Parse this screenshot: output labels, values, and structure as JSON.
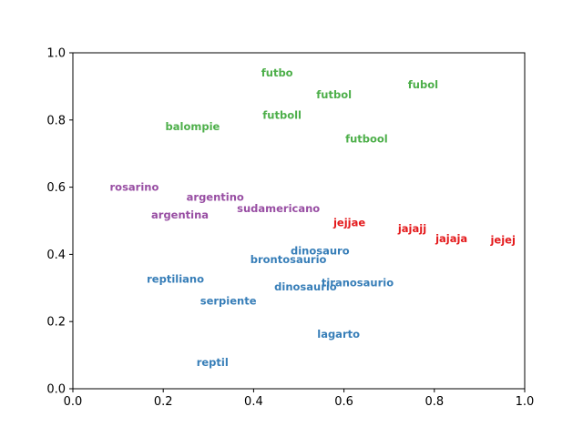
{
  "chart_data": {
    "type": "scatter",
    "title": "",
    "xlabel": "",
    "ylabel": "",
    "xlim": [
      0,
      1
    ],
    "ylim": [
      0,
      1
    ],
    "grid": false,
    "x_ticks": [
      "0.0",
      "0.2",
      "0.4",
      "0.6",
      "0.8",
      "1.0"
    ],
    "y_ticks": [
      "0.0",
      "0.2",
      "0.4",
      "0.6",
      "0.8",
      "1.0"
    ],
    "series": [
      {
        "color": "#4daf4a",
        "points": [
          {
            "label": "futbo",
            "x": 0.452,
            "y": 0.94
          },
          {
            "label": "fubol",
            "x": 0.775,
            "y": 0.905
          },
          {
            "label": "futbol",
            "x": 0.578,
            "y": 0.876
          },
          {
            "label": "futboll",
            "x": 0.463,
            "y": 0.814
          },
          {
            "label": "balompie",
            "x": 0.265,
            "y": 0.78
          },
          {
            "label": "futbool",
            "x": 0.65,
            "y": 0.744
          }
        ]
      },
      {
        "color": "#984ea3",
        "points": [
          {
            "label": "rosarino",
            "x": 0.136,
            "y": 0.6
          },
          {
            "label": "argentino",
            "x": 0.315,
            "y": 0.571
          },
          {
            "label": "sudamericano",
            "x": 0.455,
            "y": 0.536
          },
          {
            "label": "argentina",
            "x": 0.237,
            "y": 0.518
          }
        ]
      },
      {
        "color": "#e41a1c",
        "points": [
          {
            "label": "jejjae",
            "x": 0.612,
            "y": 0.495
          },
          {
            "label": "jajajj",
            "x": 0.751,
            "y": 0.477
          },
          {
            "label": "jajaja",
            "x": 0.838,
            "y": 0.447
          },
          {
            "label": "jejej",
            "x": 0.952,
            "y": 0.443
          }
        ]
      },
      {
        "color": "#377eb8",
        "points": [
          {
            "label": "dinosauro",
            "x": 0.547,
            "y": 0.41
          },
          {
            "label": "brontosaurio",
            "x": 0.477,
            "y": 0.385
          },
          {
            "label": "reptiliano",
            "x": 0.227,
            "y": 0.327
          },
          {
            "label": "tiranosaurio",
            "x": 0.63,
            "y": 0.316
          },
          {
            "label": "dinosaurio",
            "x": 0.515,
            "y": 0.304
          },
          {
            "label": "serpiente",
            "x": 0.344,
            "y": 0.261
          },
          {
            "label": "lagarto",
            "x": 0.588,
            "y": 0.163
          },
          {
            "label": "reptil",
            "x": 0.309,
            "y": 0.078
          }
        ]
      }
    ]
  }
}
